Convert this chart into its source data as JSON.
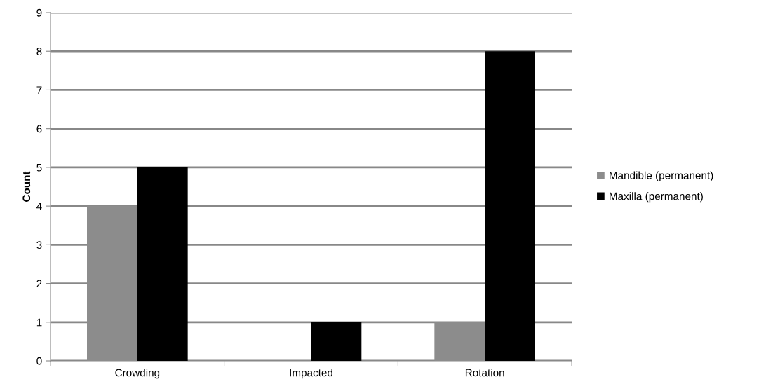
{
  "chart_data": {
    "type": "bar",
    "ylabel": "Count",
    "categories": [
      "Crowding",
      "Impacted",
      "Rotation"
    ],
    "series": [
      {
        "name": "Mandible (permanent)",
        "color": "#8c8c8c",
        "values": [
          4,
          0,
          1
        ]
      },
      {
        "name": "Maxilla (permanent)",
        "color": "#000000",
        "values": [
          5,
          1,
          8
        ]
      }
    ],
    "ylim": [
      0,
      9
    ],
    "yticks": [
      0,
      1,
      2,
      3,
      4,
      5,
      6,
      7,
      8,
      9
    ],
    "grid": "y",
    "legend": "right"
  }
}
